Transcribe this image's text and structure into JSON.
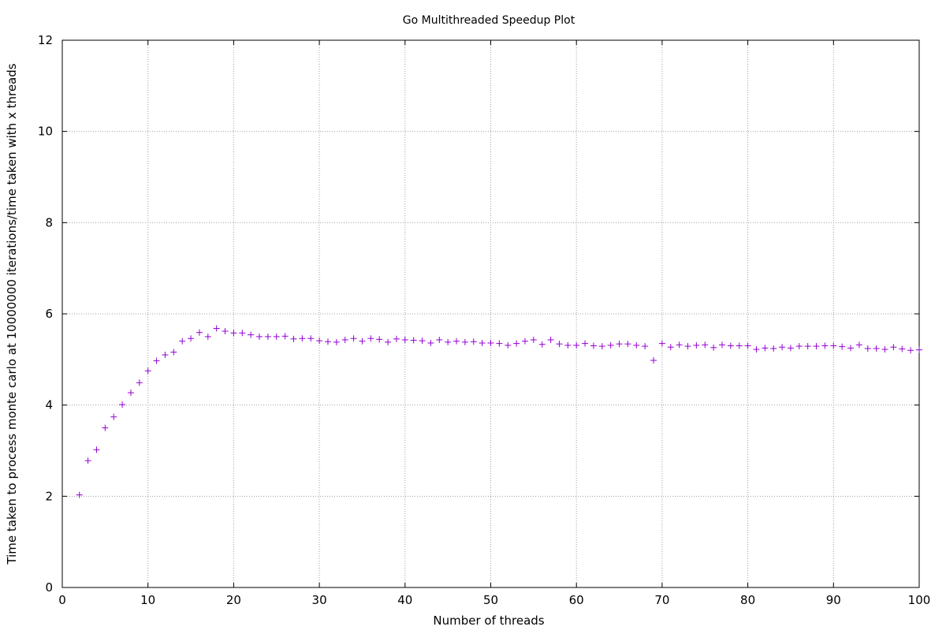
{
  "chart_data": {
    "type": "scatter",
    "title": "Go Multithreaded Speedup Plot",
    "xlabel": "Number of threads",
    "ylabel": "Time taken to process monte carlo at 10000000 iterations/time taken with x threads",
    "xlim": [
      0,
      100
    ],
    "ylim": [
      0,
      12
    ],
    "x_ticks": [
      "0",
      "10",
      "20",
      "30",
      "40",
      "50",
      "60",
      "70",
      "80",
      "90",
      "100"
    ],
    "y_ticks": [
      "0",
      "2",
      "4",
      "6",
      "8",
      "10",
      "12"
    ],
    "grid": true,
    "legend": "none",
    "marker": "plus",
    "color": "#9400d3",
    "series": [
      {
        "x": [
          2,
          3,
          4,
          5,
          6,
          7,
          8,
          9,
          10,
          11,
          12,
          13,
          14,
          15,
          16,
          17,
          18,
          19,
          20,
          21,
          22,
          23,
          24,
          25,
          26,
          27,
          28,
          29,
          30,
          31,
          32,
          33,
          34,
          35,
          36,
          37,
          38,
          39,
          40,
          41,
          42,
          43,
          44,
          45,
          46,
          47,
          48,
          49,
          50,
          51,
          52,
          53,
          54,
          55,
          56,
          57,
          58,
          59,
          60,
          61,
          62,
          63,
          64,
          65,
          66,
          67,
          68,
          69,
          70,
          71,
          72,
          73,
          74,
          75,
          76,
          77,
          78,
          79,
          80,
          81,
          82,
          83,
          84,
          85,
          86,
          87,
          88,
          89,
          90,
          91,
          92,
          93,
          94,
          95,
          96,
          97,
          98,
          99,
          100
        ],
        "y": [
          2.03,
          2.78,
          3.02,
          3.5,
          3.74,
          4.01,
          4.27,
          4.49,
          4.75,
          4.97,
          5.1,
          5.16,
          5.4,
          5.46,
          5.59,
          5.5,
          5.68,
          5.62,
          5.58,
          5.58,
          5.54,
          5.5,
          5.5,
          5.5,
          5.51,
          5.45,
          5.46,
          5.46,
          5.41,
          5.39,
          5.38,
          5.43,
          5.46,
          5.4,
          5.46,
          5.44,
          5.38,
          5.45,
          5.43,
          5.42,
          5.41,
          5.36,
          5.43,
          5.38,
          5.4,
          5.38,
          5.39,
          5.36,
          5.36,
          5.35,
          5.31,
          5.35,
          5.4,
          5.43,
          5.33,
          5.43,
          5.34,
          5.31,
          5.31,
          5.35,
          5.3,
          5.29,
          5.31,
          5.34,
          5.34,
          5.31,
          5.29,
          4.98,
          5.35,
          5.27,
          5.32,
          5.29,
          5.31,
          5.32,
          5.26,
          5.32,
          5.3,
          5.3,
          5.3,
          5.22,
          5.25,
          5.24,
          5.27,
          5.25,
          5.29,
          5.29,
          5.29,
          5.3,
          5.3,
          5.28,
          5.25,
          5.32,
          5.24,
          5.24,
          5.22,
          5.27,
          5.23,
          5.2,
          5.21
        ]
      }
    ]
  }
}
